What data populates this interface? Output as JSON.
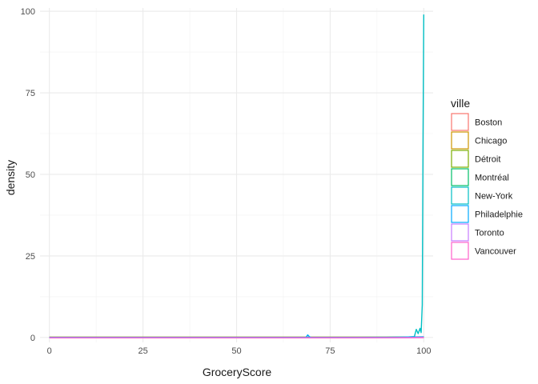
{
  "chart_data": {
    "type": "line",
    "xlabel": "GroceryScore",
    "ylabel": "density",
    "xlim": [
      -2.5,
      102.5
    ],
    "ylim": [
      -1.5,
      101
    ],
    "x_ticks": [
      0,
      25,
      50,
      75,
      100
    ],
    "y_ticks": [
      0,
      25,
      50,
      75,
      100
    ],
    "grid": true,
    "legend": {
      "title": "ville",
      "placement": "right"
    },
    "series": [
      {
        "name": "Boston",
        "color": "#F8766D",
        "x": [
          0,
          25,
          50,
          75,
          90,
          100
        ],
        "y": [
          0.1,
          0.1,
          0.1,
          0.1,
          0.12,
          0.2
        ]
      },
      {
        "name": "Chicago",
        "color": "#CD9600",
        "x": [
          0,
          25,
          50,
          75,
          90,
          100
        ],
        "y": [
          0.05,
          0.05,
          0.05,
          0.05,
          0.06,
          0.1
        ]
      },
      {
        "name": "Détroit",
        "color": "#7CAE00",
        "x": [
          0,
          25,
          50,
          75,
          90,
          100
        ],
        "y": [
          0.1,
          0.1,
          0.1,
          0.1,
          0.12,
          0.15
        ]
      },
      {
        "name": "Montréal",
        "color": "#00BE67",
        "x": [
          0,
          25,
          50,
          75,
          90,
          100
        ],
        "y": [
          0.05,
          0.05,
          0.05,
          0.05,
          0.06,
          0.1
        ]
      },
      {
        "name": "New-York",
        "color": "#00BFC4",
        "x": [
          0,
          25,
          50,
          75,
          95,
          97.5,
          98,
          98.5,
          99,
          99.3,
          99.6,
          99.8,
          100
        ],
        "y": [
          0,
          0,
          0,
          0,
          0.1,
          0.3,
          2.5,
          1.2,
          2.8,
          1.5,
          10,
          60,
          99
        ]
      },
      {
        "name": "Philadelphie",
        "color": "#00A9FF",
        "x": [
          0,
          25,
          50,
          68.5,
          69,
          69.5,
          70,
          75,
          90,
          100
        ],
        "y": [
          0,
          0,
          0,
          0,
          0.8,
          0.2,
          0,
          0,
          0.05,
          0.2
        ]
      },
      {
        "name": "Toronto",
        "color": "#C77CFF",
        "x": [
          0,
          25,
          50,
          75,
          90,
          100
        ],
        "y": [
          -0.05,
          -0.05,
          -0.05,
          -0.05,
          -0.04,
          0
        ]
      },
      {
        "name": "Vancouver",
        "color": "#FF61CC",
        "x": [
          0,
          25,
          50,
          75,
          90,
          100
        ],
        "y": [
          -0.1,
          -0.1,
          -0.1,
          -0.1,
          -0.08,
          -0.05
        ]
      }
    ]
  }
}
